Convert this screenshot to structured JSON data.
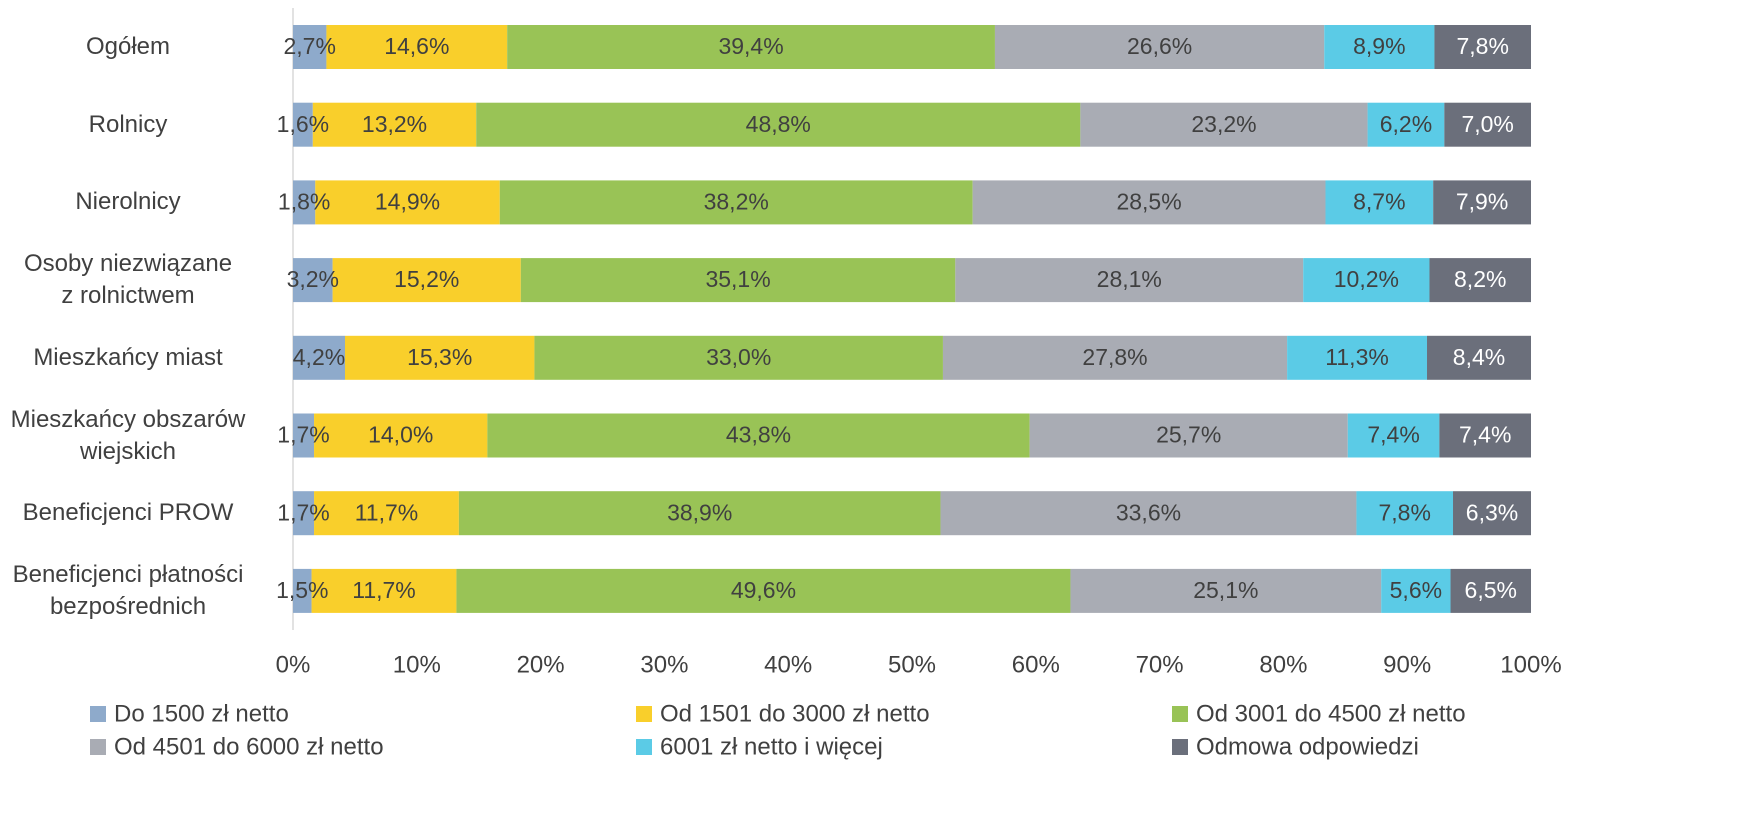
{
  "chart_data": {
    "type": "stacked_barh",
    "categories": [
      "Ogółem",
      "Rolnicy",
      "Nierolnicy",
      "Osoby niezwiązane\nz rolnictwem",
      "Mieszkańcy miast",
      "Mieszkańcy obszarów\nwiejskich",
      "Beneficjenci PROW",
      "Beneficjenci płatności\nbezpośrednich"
    ],
    "series": [
      {
        "name": "Do 1500 zł netto",
        "color": "#8eaacb",
        "values": [
          2.7,
          1.6,
          1.8,
          3.2,
          4.2,
          1.7,
          1.7,
          1.5
        ],
        "value_labels": [
          "2,7%",
          "1,6%",
          "1,8%",
          "3,2%",
          "4,2%",
          "1,7%",
          "1,7%",
          "1,5%"
        ]
      },
      {
        "name": "Od 1501 do 3000 zł netto",
        "color": "#f9cf2b",
        "values": [
          14.6,
          13.2,
          14.9,
          15.2,
          15.3,
          14.0,
          11.7,
          11.7
        ],
        "value_labels": [
          "14,6%",
          "13,2%",
          "14,9%",
          "15,2%",
          "15,3%",
          "14,0%",
          "11,7%",
          "11,7%"
        ]
      },
      {
        "name": "Od 3001 do 4500 zł netto",
        "color": "#99c356",
        "values": [
          39.4,
          48.8,
          38.2,
          35.1,
          33.0,
          43.8,
          38.9,
          49.6
        ],
        "value_labels": [
          "39,4%",
          "48,8%",
          "38,2%",
          "35,1%",
          "33,0%",
          "43,8%",
          "38,9%",
          "49,6%"
        ]
      },
      {
        "name": "Od 4501 do 6000 zł netto",
        "color": "#a9acb4",
        "values": [
          26.6,
          23.2,
          28.5,
          28.1,
          27.8,
          25.7,
          33.6,
          25.1
        ],
        "value_labels": [
          "26,6%",
          "23,2%",
          "28,5%",
          "28,1%",
          "27,8%",
          "25,7%",
          "33,6%",
          "25,1%"
        ]
      },
      {
        "name": "6001 zł netto i więcej",
        "color": "#5bcbe6",
        "values": [
          8.9,
          6.2,
          8.7,
          10.2,
          11.3,
          7.4,
          7.8,
          5.6
        ],
        "value_labels": [
          "8,9%",
          "6,2%",
          "8,7%",
          "10,2%",
          "11,3%",
          "7,4%",
          "7,8%",
          "5,6%"
        ]
      },
      {
        "name": "Odmowa odpowiedzi",
        "color": "#6b6f7b",
        "values": [
          7.8,
          7.0,
          7.9,
          8.2,
          8.4,
          7.4,
          6.3,
          6.5
        ],
        "value_labels": [
          "7,8%",
          "7,0%",
          "7,9%",
          "8,2%",
          "8,4%",
          "7,4%",
          "6,3%",
          "6,5%"
        ]
      }
    ],
    "xlim": [
      0,
      100
    ],
    "xticks": [
      {
        "value": 0,
        "label": "0%"
      },
      {
        "value": 10,
        "label": "10%"
      },
      {
        "value": 20,
        "label": "20%"
      },
      {
        "value": 30,
        "label": "30%"
      },
      {
        "value": 40,
        "label": "40%"
      },
      {
        "value": 50,
        "label": "50%"
      },
      {
        "value": 60,
        "label": "60%"
      },
      {
        "value": 70,
        "label": "70%"
      },
      {
        "value": 80,
        "label": "80%"
      },
      {
        "value": 90,
        "label": "90%"
      },
      {
        "value": 100,
        "label": "100%"
      }
    ],
    "grid": false,
    "legend": "bottom"
  }
}
